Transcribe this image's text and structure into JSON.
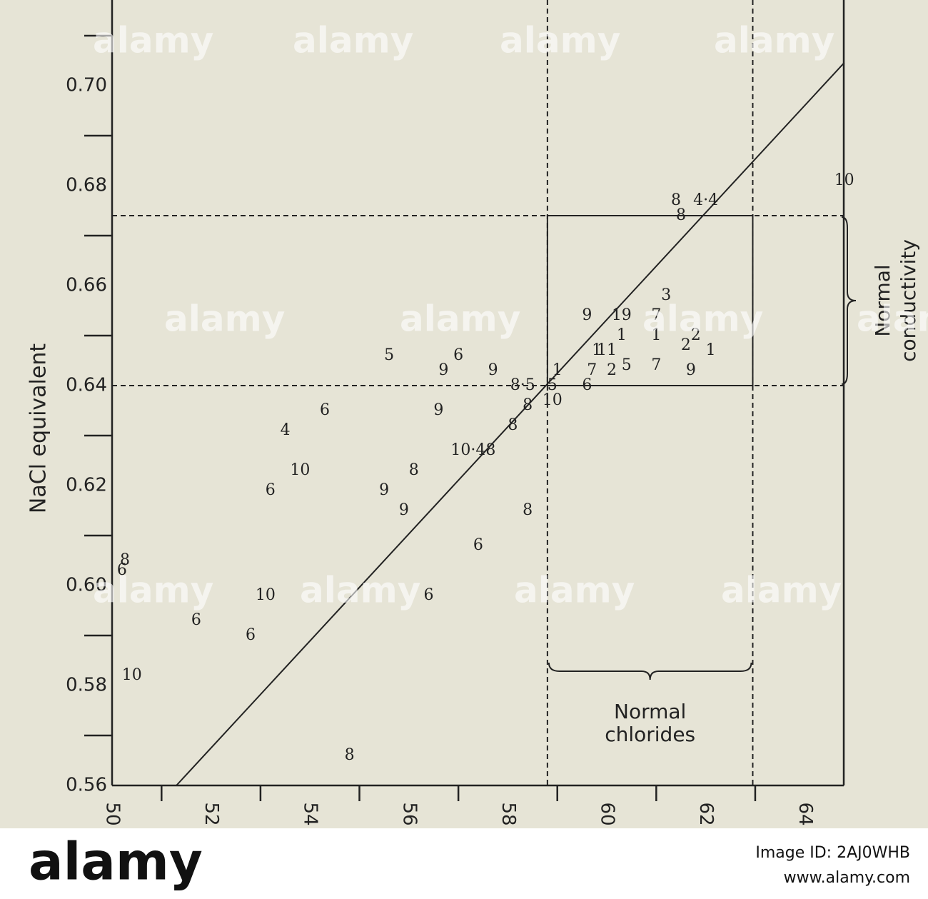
{
  "chart_data": {
    "type": "scatter",
    "ylabel": "NaCl equivalent",
    "xlim": [
      50,
      64.79
    ],
    "ylim": [
      0.56,
      0.717
    ],
    "xticks": [
      50,
      52,
      54,
      56,
      58,
      60,
      62,
      64
    ],
    "xminor_ticks": [
      51,
      53,
      55,
      57,
      59,
      61,
      63
    ],
    "yticks": [
      {
        "value": 0.56,
        "label": "0.56"
      },
      {
        "value": 0.58,
        "label": "0.58"
      },
      {
        "value": 0.6,
        "label": "0.60"
      },
      {
        "value": 0.62,
        "label": "0.62"
      },
      {
        "value": 0.64,
        "label": "0.64"
      },
      {
        "value": 0.66,
        "label": "0.66"
      },
      {
        "value": 0.68,
        "label": "0.68"
      },
      {
        "value": 0.7,
        "label": "0.70"
      }
    ],
    "yminor_ticks": [
      0.57,
      0.59,
      0.61,
      0.63,
      0.65,
      0.67,
      0.69,
      0.71
    ],
    "x": [
      50.26,
      50.2,
      50.4,
      51.7,
      52.8,
      53.1,
      53.2,
      53.8,
      53.5,
      54.3,
      55.6,
      56.7,
      57.0,
      57.7,
      56.6,
      56.1,
      55.5,
      55.9,
      58.4,
      57.4,
      56.4,
      54.8,
      59.6,
      60.3,
      61.0,
      60.3,
      61.0,
      60.0,
      60.4,
      61.0,
      61.8,
      61.6,
      62.1,
      61.2,
      61.5,
      61.4,
      62.0,
      59.8,
      59.7,
      60.1,
      61.7,
      59.0,
      58.3,
      58.9,
      59.6,
      58.9,
      58.4,
      58.1,
      57.3,
      64.8
    ],
    "y": [
      0.605,
      0.603,
      0.582,
      0.593,
      0.59,
      0.598,
      0.619,
      0.623,
      0.631,
      0.635,
      0.646,
      0.643,
      0.646,
      0.643,
      0.635,
      0.623,
      0.619,
      0.615,
      0.615,
      0.608,
      0.598,
      0.566,
      0.654,
      0.654,
      0.654,
      0.65,
      0.65,
      0.647,
      0.644,
      0.644,
      0.65,
      0.648,
      0.647,
      0.658,
      0.674,
      0.677,
      0.677,
      0.647,
      0.643,
      0.643,
      0.643,
      0.643,
      0.64,
      0.64,
      0.64,
      0.637,
      0.636,
      0.632,
      0.627,
      0.681
    ],
    "point_labels": [
      "8",
      "6",
      "10",
      "6",
      "6",
      "10",
      "6",
      "10",
      "4",
      "6",
      "5",
      "9",
      "6",
      "9",
      "9",
      "8",
      "9",
      "9",
      "8",
      "6",
      "6",
      "8",
      "9",
      "19",
      "7",
      "1",
      "1",
      "11",
      "5",
      "7",
      "2",
      "2",
      "1",
      "3",
      "8",
      "8",
      "4·4",
      "1",
      "7",
      "2",
      "9",
      "1",
      "8·5",
      "5",
      "6",
      "10",
      "8",
      "8",
      "10·48",
      "10"
    ],
    "fit_line": {
      "x": [
        51.3,
        64.8
      ],
      "y": [
        0.56,
        0.7046
      ]
    },
    "normal_range": {
      "x": [
        58.8,
        62.95
      ],
      "y": [
        0.64,
        0.674
      ]
    },
    "annotations": {
      "chlorides": [
        "Normal",
        "chlorides"
      ],
      "conductivity": [
        "Normal",
        "conductivity"
      ]
    }
  },
  "watermark": {
    "brand": "alamy",
    "image_id": "Image ID: 2AJ0WHB",
    "url": "www.alamy.com"
  }
}
